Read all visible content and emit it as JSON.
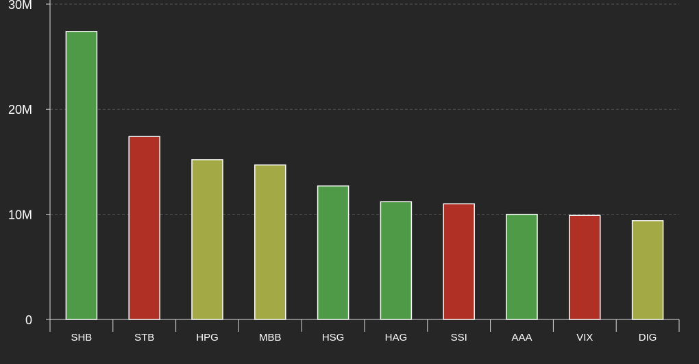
{
  "chart_data": {
    "type": "bar",
    "categories": [
      "SHB",
      "STB",
      "HPG",
      "MBB",
      "HSG",
      "HAG",
      "SSI",
      "AAA",
      "VIX",
      "DIG"
    ],
    "values": [
      27400000,
      17400000,
      15200000,
      14700000,
      12700000,
      11200000,
      11000000,
      10000000,
      9900000,
      9400000
    ],
    "colors": [
      "#4f9a46",
      "#b03025",
      "#a3a945",
      "#a3a945",
      "#4f9a46",
      "#4f9a46",
      "#b03025",
      "#4f9a46",
      "#b03025",
      "#a3a945"
    ],
    "ylim": [
      0,
      30000000
    ],
    "yticks": [
      0,
      {
        "value": 10000000,
        "label": "10M"
      },
      {
        "value": 20000000,
        "label": "20M"
      },
      {
        "value": 30000000,
        "label": "30M"
      }
    ],
    "grid": true
  }
}
